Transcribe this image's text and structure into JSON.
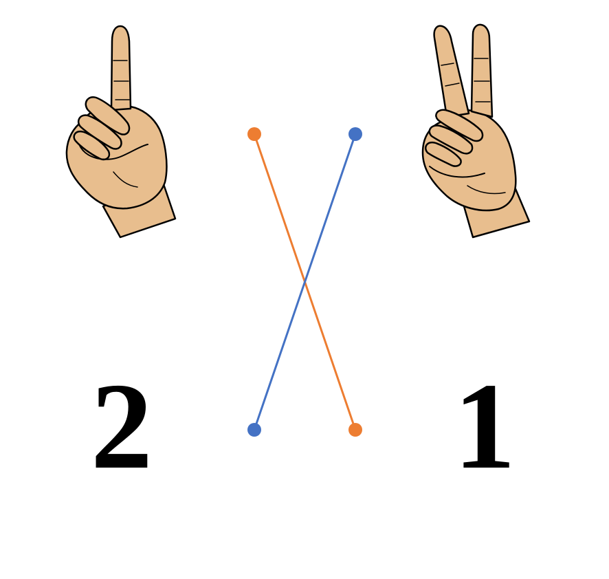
{
  "numbers": {
    "left": "2",
    "right": "1"
  },
  "hands": {
    "left": {
      "icon": "hand-one-finger-icon",
      "fingers_shown": 1
    },
    "right": {
      "icon": "hand-two-fingers-icon",
      "fingers_shown": 2
    }
  },
  "connectors": [
    {
      "name": "orange",
      "color": "#ED7D31",
      "from": "hand-one-finger",
      "to": "number-1"
    },
    {
      "name": "blue",
      "color": "#4472C4",
      "from": "hand-two-fingers",
      "to": "number-2"
    }
  ],
  "colors": {
    "skin": "#E8BE8E",
    "skin_shadow": "#D9A877",
    "outline": "#000000"
  }
}
